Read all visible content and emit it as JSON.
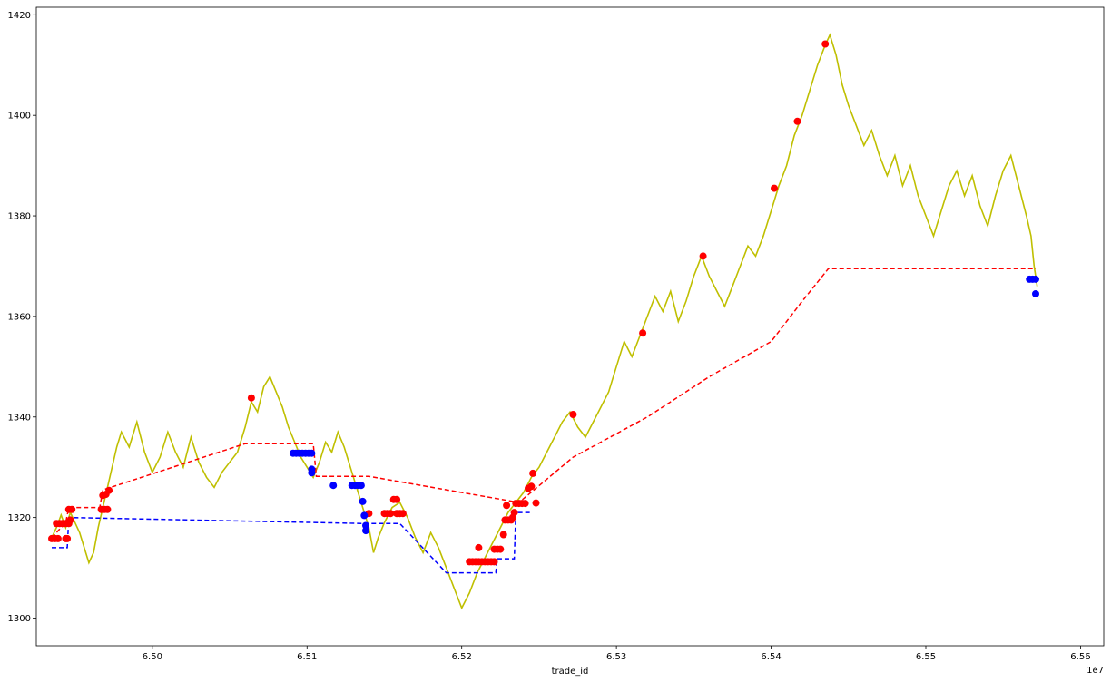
{
  "chart_data": {
    "type": "line",
    "title": "",
    "xlabel": "trade_id",
    "ylabel": "",
    "x_offset_text": "1e7",
    "xlim": [
      6.4925,
      6.5615
    ],
    "ylim": [
      1294.5,
      1421.5
    ],
    "x_ticks": [
      6.5,
      6.51,
      6.52,
      6.53,
      6.54,
      6.55,
      6.56
    ],
    "x_tick_labels": [
      "6.50",
      "6.51",
      "6.52",
      "6.53",
      "6.54",
      "6.55",
      "6.56"
    ],
    "y_ticks": [
      1300,
      1320,
      1340,
      1360,
      1380,
      1400,
      1420
    ],
    "y_tick_labels": [
      "1300",
      "1320",
      "1340",
      "1360",
      "1380",
      "1400",
      "1420"
    ],
    "grid": false,
    "colors": {
      "price": "#bfbf00",
      "red": "#ff0000",
      "blue": "#0000ff"
    },
    "series": [
      {
        "style": "solid",
        "color": "#bfbf00",
        "points": [
          [
            6.4935,
            1316
          ],
          [
            6.4938,
            1318
          ],
          [
            6.4941,
            1320.5
          ],
          [
            6.4944,
            1318
          ],
          [
            6.4947,
            1321
          ],
          [
            6.495,
            1319
          ],
          [
            6.4953,
            1317
          ],
          [
            6.4956,
            1314
          ],
          [
            6.4959,
            1311
          ],
          [
            6.4962,
            1313
          ],
          [
            6.4965,
            1318
          ],
          [
            6.4968,
            1322
          ],
          [
            6.4971,
            1326
          ],
          [
            6.4974,
            1330
          ],
          [
            6.4977,
            1334
          ],
          [
            6.498,
            1337
          ],
          [
            6.4985,
            1334
          ],
          [
            6.499,
            1339
          ],
          [
            6.4995,
            1333
          ],
          [
            6.5,
            1329
          ],
          [
            6.5005,
            1332
          ],
          [
            6.501,
            1337
          ],
          [
            6.5015,
            1333
          ],
          [
            6.502,
            1330
          ],
          [
            6.5025,
            1336
          ],
          [
            6.503,
            1331
          ],
          [
            6.5035,
            1328
          ],
          [
            6.504,
            1326
          ],
          [
            6.5045,
            1329
          ],
          [
            6.505,
            1331
          ],
          [
            6.5055,
            1333
          ],
          [
            6.506,
            1338
          ],
          [
            6.5064,
            1343
          ],
          [
            6.5068,
            1341
          ],
          [
            6.5072,
            1346
          ],
          [
            6.5076,
            1348
          ],
          [
            6.508,
            1345
          ],
          [
            6.5084,
            1342
          ],
          [
            6.5088,
            1338
          ],
          [
            6.5092,
            1335
          ],
          [
            6.5096,
            1332
          ],
          [
            6.51,
            1330
          ],
          [
            6.5104,
            1328
          ],
          [
            6.5108,
            1331
          ],
          [
            6.5112,
            1335
          ],
          [
            6.5116,
            1333
          ],
          [
            6.512,
            1337
          ],
          [
            6.5124,
            1334
          ],
          [
            6.5128,
            1330
          ],
          [
            6.5132,
            1326
          ],
          [
            6.5136,
            1322
          ],
          [
            6.514,
            1318
          ],
          [
            6.5143,
            1313
          ],
          [
            6.5146,
            1316
          ],
          [
            6.515,
            1319
          ],
          [
            6.5155,
            1322
          ],
          [
            6.516,
            1323
          ],
          [
            6.5165,
            1320
          ],
          [
            6.517,
            1316
          ],
          [
            6.5175,
            1313
          ],
          [
            6.518,
            1317
          ],
          [
            6.5185,
            1314
          ],
          [
            6.519,
            1310
          ],
          [
            6.5195,
            1306
          ],
          [
            6.52,
            1302
          ],
          [
            6.5205,
            1305
          ],
          [
            6.521,
            1309
          ],
          [
            6.5215,
            1312
          ],
          [
            6.522,
            1315
          ],
          [
            6.5225,
            1318
          ],
          [
            6.523,
            1321
          ],
          [
            6.5235,
            1323
          ],
          [
            6.524,
            1325
          ],
          [
            6.5245,
            1328
          ],
          [
            6.525,
            1330
          ],
          [
            6.5255,
            1333
          ],
          [
            6.526,
            1336
          ],
          [
            6.5265,
            1339
          ],
          [
            6.527,
            1341
          ],
          [
            6.5275,
            1338
          ],
          [
            6.528,
            1336
          ],
          [
            6.5285,
            1339
          ],
          [
            6.529,
            1342
          ],
          [
            6.5295,
            1345
          ],
          [
            6.53,
            1350
          ],
          [
            6.5305,
            1355
          ],
          [
            6.531,
            1352
          ],
          [
            6.5315,
            1356
          ],
          [
            6.532,
            1360
          ],
          [
            6.5325,
            1364
          ],
          [
            6.533,
            1361
          ],
          [
            6.5335,
            1365
          ],
          [
            6.534,
            1359
          ],
          [
            6.5345,
            1363
          ],
          [
            6.535,
            1368
          ],
          [
            6.5355,
            1372
          ],
          [
            6.536,
            1368
          ],
          [
            6.5365,
            1365
          ],
          [
            6.537,
            1362
          ],
          [
            6.5375,
            1366
          ],
          [
            6.538,
            1370
          ],
          [
            6.5385,
            1374
          ],
          [
            6.539,
            1372
          ],
          [
            6.5395,
            1376
          ],
          [
            6.54,
            1381
          ],
          [
            6.5405,
            1386
          ],
          [
            6.541,
            1390
          ],
          [
            6.5415,
            1396
          ],
          [
            6.542,
            1400
          ],
          [
            6.5425,
            1405
          ],
          [
            6.543,
            1410
          ],
          [
            6.5435,
            1414
          ],
          [
            6.5438,
            1416
          ],
          [
            6.5442,
            1412
          ],
          [
            6.5446,
            1406
          ],
          [
            6.545,
            1402
          ],
          [
            6.5455,
            1398
          ],
          [
            6.546,
            1394
          ],
          [
            6.5465,
            1397
          ],
          [
            6.547,
            1392
          ],
          [
            6.5475,
            1388
          ],
          [
            6.548,
            1392
          ],
          [
            6.5485,
            1386
          ],
          [
            6.549,
            1390
          ],
          [
            6.5495,
            1384
          ],
          [
            6.55,
            1380
          ],
          [
            6.5505,
            1376
          ],
          [
            6.551,
            1381
          ],
          [
            6.5515,
            1386
          ],
          [
            6.552,
            1389
          ],
          [
            6.5525,
            1384
          ],
          [
            6.553,
            1388
          ],
          [
            6.5535,
            1382
          ],
          [
            6.554,
            1378
          ],
          [
            6.5545,
            1384
          ],
          [
            6.555,
            1389
          ],
          [
            6.5555,
            1392
          ],
          [
            6.556,
            1386
          ],
          [
            6.5565,
            1380
          ],
          [
            6.5568,
            1376
          ],
          [
            6.557,
            1370
          ],
          [
            6.5572,
            1366
          ]
        ]
      },
      {
        "style": "dashed",
        "color": "#ff0000",
        "points": [
          [
            6.4935,
            1316
          ],
          [
            6.4944,
            1319
          ],
          [
            6.4946,
            1322
          ],
          [
            6.4966,
            1322
          ],
          [
            6.4968,
            1325.5
          ],
          [
            6.506,
            1334.7
          ],
          [
            6.5104,
            1334.7
          ],
          [
            6.5106,
            1328.2
          ],
          [
            6.514,
            1328.2
          ],
          [
            6.5237,
            1323
          ],
          [
            6.5272,
            1332
          ],
          [
            6.532,
            1340
          ],
          [
            6.536,
            1348
          ],
          [
            6.54,
            1355
          ],
          [
            6.542,
            1363
          ],
          [
            6.5437,
            1369.5
          ],
          [
            6.5571,
            1369.5
          ]
        ]
      },
      {
        "style": "dashed",
        "color": "#0000ff",
        "points": [
          [
            6.4935,
            1314
          ],
          [
            6.4945,
            1314
          ],
          [
            6.4946,
            1320
          ],
          [
            6.5138,
            1318.8
          ],
          [
            6.516,
            1318.8
          ],
          [
            6.519,
            1309
          ],
          [
            6.5222,
            1309
          ],
          [
            6.5223,
            1311.8
          ],
          [
            6.5234,
            1311.8
          ],
          [
            6.5235,
            1321
          ],
          [
            6.5245,
            1321
          ]
        ]
      }
    ],
    "markers": [
      {
        "color": "#ff0000",
        "points": [
          [
            6.4935,
            1315.8
          ],
          [
            6.4937,
            1315.8
          ],
          [
            6.4939,
            1315.8
          ],
          [
            6.4938,
            1318.8
          ],
          [
            6.494,
            1318.8
          ],
          [
            6.4942,
            1318.8
          ],
          [
            6.4944,
            1318.8
          ],
          [
            6.4946,
            1318.8
          ],
          [
            6.4944,
            1315.8
          ],
          [
            6.4945,
            1315.8
          ],
          [
            6.4946,
            1321.6
          ],
          [
            6.4948,
            1321.6
          ],
          [
            6.4947,
            1319.5
          ],
          [
            6.4967,
            1321.6
          ],
          [
            6.4969,
            1321.6
          ],
          [
            6.4971,
            1321.6
          ],
          [
            6.4968,
            1324.4
          ],
          [
            6.497,
            1324.6
          ],
          [
            6.4972,
            1325.4
          ],
          [
            6.5064,
            1343.8
          ],
          [
            6.514,
            1320.8
          ],
          [
            6.515,
            1320.8
          ],
          [
            6.5152,
            1320.8
          ],
          [
            6.5154,
            1320.8
          ],
          [
            6.5156,
            1323.6
          ],
          [
            6.5158,
            1323.6
          ],
          [
            6.5158,
            1320.8
          ],
          [
            6.516,
            1320.8
          ],
          [
            6.5162,
            1320.8
          ],
          [
            6.5205,
            1311.2
          ],
          [
            6.5207,
            1311.2
          ],
          [
            6.5209,
            1311.2
          ],
          [
            6.5211,
            1311.2
          ],
          [
            6.5213,
            1311.2
          ],
          [
            6.5215,
            1311.2
          ],
          [
            6.5217,
            1311.2
          ],
          [
            6.5219,
            1311.2
          ],
          [
            6.5221,
            1311.2
          ],
          [
            6.5211,
            1314
          ],
          [
            6.5221,
            1313.7
          ],
          [
            6.5223,
            1313.7
          ],
          [
            6.5225,
            1313.7
          ],
          [
            6.5227,
            1316.6
          ],
          [
            6.5228,
            1319.5
          ],
          [
            6.523,
            1319.5
          ],
          [
            6.5232,
            1319.5
          ],
          [
            6.5229,
            1322.4
          ],
          [
            6.5233,
            1320
          ],
          [
            6.5234,
            1321
          ],
          [
            6.5235,
            1322.8
          ],
          [
            6.5237,
            1322.8
          ],
          [
            6.5239,
            1322.8
          ],
          [
            6.5241,
            1322.8
          ],
          [
            6.5243,
            1325.8
          ],
          [
            6.5245,
            1326.2
          ],
          [
            6.5246,
            1328.8
          ],
          [
            6.5248,
            1322.9
          ],
          [
            6.5272,
            1340.5
          ],
          [
            6.5317,
            1356.7
          ],
          [
            6.5356,
            1372
          ],
          [
            6.5402,
            1385.5
          ],
          [
            6.5417,
            1398.8
          ],
          [
            6.5435,
            1414.2
          ]
        ]
      },
      {
        "color": "#0000ff",
        "points": [
          [
            6.5091,
            1332.8
          ],
          [
            6.5093,
            1332.8
          ],
          [
            6.5095,
            1332.8
          ],
          [
            6.5097,
            1332.8
          ],
          [
            6.5099,
            1332.8
          ],
          [
            6.5101,
            1332.8
          ],
          [
            6.5103,
            1332.8
          ],
          [
            6.5103,
            1329.6
          ],
          [
            6.5103,
            1328.9
          ],
          [
            6.5117,
            1326.4
          ],
          [
            6.5129,
            1326.4
          ],
          [
            6.5131,
            1326.4
          ],
          [
            6.5133,
            1326.4
          ],
          [
            6.5135,
            1326.4
          ],
          [
            6.5136,
            1323.2
          ],
          [
            6.5137,
            1320.4
          ],
          [
            6.5138,
            1318.4
          ],
          [
            6.5138,
            1317.4
          ],
          [
            6.5567,
            1367.4
          ],
          [
            6.5569,
            1367.4
          ],
          [
            6.5571,
            1367.4
          ],
          [
            6.5571,
            1364.5
          ]
        ]
      }
    ]
  }
}
